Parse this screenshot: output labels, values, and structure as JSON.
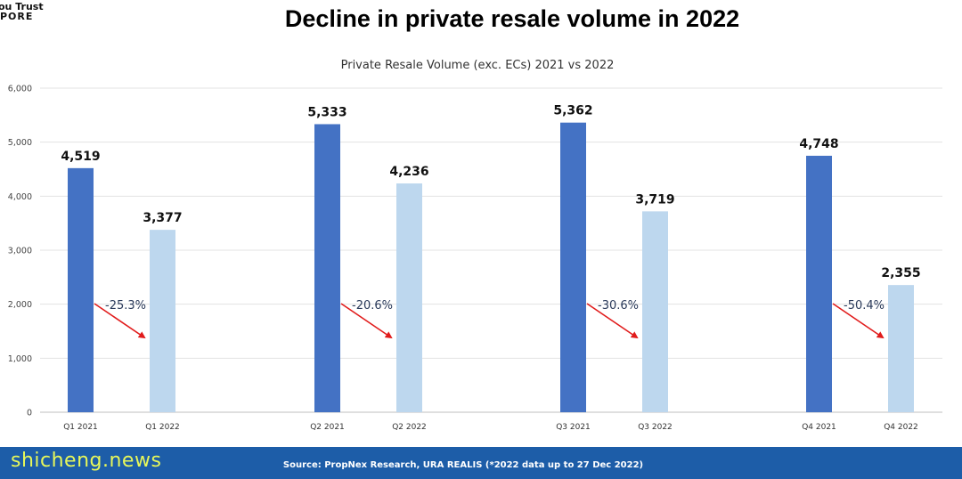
{
  "header": {
    "logo_line1": "ou Trust",
    "logo_line2": "PORE",
    "title": "Decline in private resale volume in 2022"
  },
  "footer": {
    "source": "Source: PropNex Research, URA REALIS (*2022 data up to 27 Dec 2022)",
    "watermark": "shicheng.news"
  },
  "colors": {
    "bar_2021": "#4472c4",
    "bar_2022": "#bdd7ee",
    "arrow": "#e11b1b",
    "footer_bg": "#1d5da8",
    "watermark": "#e7f75a"
  },
  "chart_data": {
    "type": "bar",
    "title": "Private Resale Volume (exc. ECs) 2021 vs 2022",
    "xlabel": "",
    "ylabel": "",
    "ylim": [
      0,
      6000
    ],
    "yticks": [
      "0",
      "1,000",
      "2,000",
      "3,000",
      "4,000",
      "5,000",
      "6,000"
    ],
    "grid": true,
    "legend": "none",
    "groups": [
      {
        "bars": [
          {
            "label": "Q1 2021",
            "value": 4519,
            "value_label": "4,519",
            "series": "2021"
          },
          {
            "label": "Q1 2022",
            "value": 3377,
            "value_label": "3,377",
            "series": "2022"
          }
        ],
        "change": "-25.3%"
      },
      {
        "bars": [
          {
            "label": "Q2 2021",
            "value": 5333,
            "value_label": "5,333",
            "series": "2021"
          },
          {
            "label": "Q2 2022",
            "value": 4236,
            "value_label": "4,236",
            "series": "2022"
          }
        ],
        "change": "-20.6%"
      },
      {
        "bars": [
          {
            "label": "Q3 2021",
            "value": 5362,
            "value_label": "5,362",
            "series": "2021"
          },
          {
            "label": "Q3 2022",
            "value": 3719,
            "value_label": "3,719",
            "series": "2022"
          }
        ],
        "change": "-30.6%"
      },
      {
        "bars": [
          {
            "label": "Q4 2021",
            "value": 4748,
            "value_label": "4,748",
            "series": "2021"
          },
          {
            "label": "Q4 2022",
            "value": 2355,
            "value_label": "2,355",
            "series": "2022"
          }
        ],
        "change": "-50.4%"
      }
    ]
  }
}
